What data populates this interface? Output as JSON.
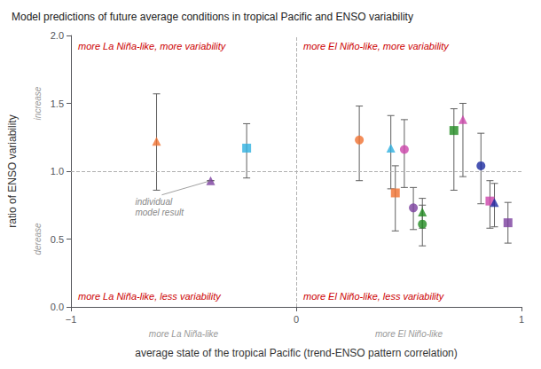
{
  "chart_data": {
    "type": "scatter",
    "title": "Model predictions of future average conditions in tropical Pacific and ENSO variability",
    "xlabel": "average state of the tropical Pacific (trend-ENSO pattern correlation)",
    "ylabel": "ratio of ENSO variability",
    "xlim": [
      -1,
      1
    ],
    "ylim": [
      0,
      2
    ],
    "xticks": [
      {
        "value": -1,
        "label": "−1"
      },
      0,
      1
    ],
    "yticks": [
      {
        "value": 0,
        "label": "0.0"
      },
      0.5,
      {
        "value": 1,
        "label": "1.0"
      },
      1.5,
      {
        "value": 2,
        "label": "2.0"
      }
    ],
    "grid": false,
    "points": [
      {
        "x": -0.62,
        "y": 1.22,
        "yerr_low": 0.36,
        "yerr_high": 0.35,
        "color": "#F07030",
        "marker": "triangle"
      },
      {
        "x": -0.38,
        "y": 0.93,
        "yerr_low": 0.0,
        "yerr_high": 0.0,
        "color": "#7B3F9E",
        "marker": "triangle"
      },
      {
        "x": -0.22,
        "y": 1.17,
        "yerr_low": 0.22,
        "yerr_high": 0.18,
        "color": "#30B0E0",
        "marker": "square"
      },
      {
        "x": 0.28,
        "y": 1.23,
        "yerr_low": 0.3,
        "yerr_high": 0.25,
        "color": "#F07030",
        "marker": "circle"
      },
      {
        "x": 0.42,
        "y": 1.17,
        "yerr_low": 0.3,
        "yerr_high": 0.24,
        "color": "#30B0E0",
        "marker": "triangle"
      },
      {
        "x": 0.48,
        "y": 1.16,
        "yerr_low": 0.28,
        "yerr_high": 0.22,
        "color": "#CC44AA",
        "marker": "circle"
      },
      {
        "x": 0.44,
        "y": 0.84,
        "yerr_low": 0.28,
        "yerr_high": 0.2,
        "color": "#F07030",
        "marker": "square"
      },
      {
        "x": 0.52,
        "y": 0.73,
        "yerr_low": 0.16,
        "yerr_high": 0.15,
        "color": "#7B3F9E",
        "marker": "circle"
      },
      {
        "x": 0.56,
        "y": 0.7,
        "yerr_low": 0.12,
        "yerr_high": 0.1,
        "color": "#228B22",
        "marker": "triangle"
      },
      {
        "x": 0.56,
        "y": 0.61,
        "yerr_low": 0.16,
        "yerr_high": 0.14,
        "color": "#228B22",
        "marker": "circle"
      },
      {
        "x": 0.7,
        "y": 1.3,
        "yerr_low": 0.44,
        "yerr_high": 0.16,
        "color": "#228B22",
        "marker": "square"
      },
      {
        "x": 0.74,
        "y": 1.38,
        "yerr_low": 0.42,
        "yerr_high": 0.12,
        "color": "#CC44AA",
        "marker": "triangle"
      },
      {
        "x": 0.82,
        "y": 1.04,
        "yerr_low": 0.28,
        "yerr_high": 0.24,
        "color": "#1C2AA0",
        "marker": "circle"
      },
      {
        "x": 0.86,
        "y": 0.78,
        "yerr_low": 0.2,
        "yerr_high": 0.15,
        "color": "#CC44AA",
        "marker": "square"
      },
      {
        "x": 0.88,
        "y": 0.77,
        "yerr_low": 0.18,
        "yerr_high": 0.14,
        "color": "#1C2AA0",
        "marker": "triangle"
      },
      {
        "x": 0.94,
        "y": 0.62,
        "yerr_low": 0.15,
        "yerr_high": 0.15,
        "color": "#7B3F9E",
        "marker": "square"
      }
    ],
    "error_bar_color": "#606060",
    "reference_lines": {
      "x": 0,
      "y": 1,
      "color": "#b0b0b0",
      "line_style": "dashed"
    },
    "quadrant_labels": {
      "top_left": "more La Niña-like, more variability",
      "top_right": "more El Niño-like, more variability",
      "bottom_left": "more La Niña-like, less variability",
      "bottom_right": "more El Niño-like, less variability"
    },
    "quadrant_label_color": "#CC0000",
    "x_sublabels": [
      "more La Niña-like",
      "more El Niño-like"
    ],
    "y_sublabels": [
      "increase",
      "derease"
    ],
    "sublabel_color": "#999999",
    "annotation": {
      "text": "individual\nmodel result",
      "x": -0.38,
      "y": 0.93,
      "color": "#888888"
    }
  }
}
